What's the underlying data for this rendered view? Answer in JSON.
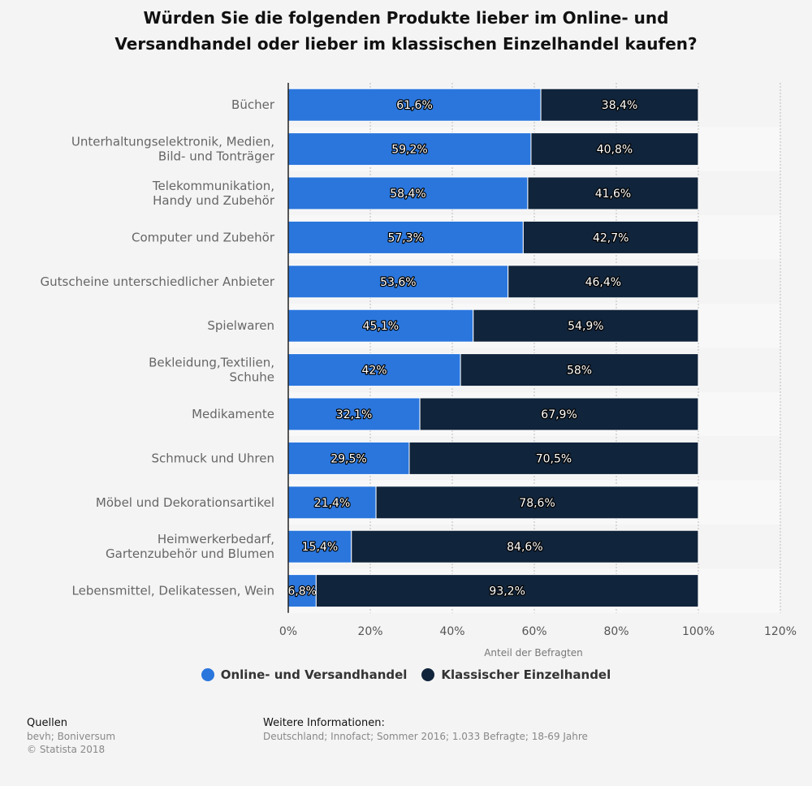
{
  "title": {
    "line1": "Würden Sie die folgenden Produkte lieber im Online- und",
    "line2": "Versandhandel oder lieber im klassischen Einzelhandel kaufen?"
  },
  "colors": {
    "online": "#2a76dd",
    "retail": "#10243b",
    "grid": "#bbbbbb",
    "band": "#f8f8f8"
  },
  "chart_data": {
    "type": "bar",
    "orientation": "horizontal",
    "stacked": true,
    "categories": [
      [
        "Bücher"
      ],
      [
        "Unterhaltungselektronik, Medien,",
        "Bild- und Tonträger"
      ],
      [
        "Telekommunikation,",
        "Handy und Zubehör"
      ],
      [
        "Computer und Zubehör"
      ],
      [
        "Gutscheine unterschiedlicher Anbieter"
      ],
      [
        "Spielwaren"
      ],
      [
        "Bekleidung,Textilien,",
        "Schuhe"
      ],
      [
        "Medikamente"
      ],
      [
        "Schmuck und Uhren"
      ],
      [
        "Möbel und Dekorationsartikel"
      ],
      [
        "Heimwerkerbedarf,",
        "Gartenzubehör und Blumen"
      ],
      [
        "Lebensmittel, Delikatessen, Wein"
      ]
    ],
    "series": [
      {
        "name": "Online- und Versandhandel",
        "values": [
          61.6,
          59.2,
          58.4,
          57.3,
          53.6,
          45.1,
          42,
          32.1,
          29.5,
          21.4,
          15.4,
          6.8
        ],
        "labels": [
          "61,6%",
          "59,2%",
          "58,4%",
          "57,3%",
          "53,6%",
          "45,1%",
          "42%",
          "32,1%",
          "29,5%",
          "21,4%",
          "15,4%",
          "6,8%"
        ]
      },
      {
        "name": "Klassischer Einzelhandel",
        "values": [
          38.4,
          40.8,
          41.6,
          42.7,
          46.4,
          54.9,
          58,
          67.9,
          70.5,
          78.6,
          84.6,
          93.2
        ],
        "labels": [
          "38,4%",
          "40,8%",
          "41,6%",
          "42,7%",
          "46,4%",
          "54,9%",
          "58%",
          "67,9%",
          "70,5%",
          "78,6%",
          "84,6%",
          "93,2%"
        ]
      }
    ],
    "xlim": [
      0,
      120
    ],
    "xticks": [
      0,
      20,
      40,
      60,
      80,
      100,
      120
    ],
    "xtick_labels": [
      "0%",
      "20%",
      "40%",
      "60%",
      "80%",
      "100%",
      "120%"
    ],
    "xlabel": "Anteil der Befragten",
    "grid": true,
    "legend_position": "bottom"
  },
  "legend": {
    "online": "Online- und Versandhandel",
    "retail": "Klassischer Einzelhandel"
  },
  "footer": {
    "sources_heading": "Quellen",
    "sources_line1": "bevh; Boniversum",
    "sources_line2": "© Statista 2018",
    "info_heading": "Weitere Informationen:",
    "info_text": "Deutschland; Innofact; Sommer 2016; 1.033 Befragte; 18-69 Jahre"
  }
}
